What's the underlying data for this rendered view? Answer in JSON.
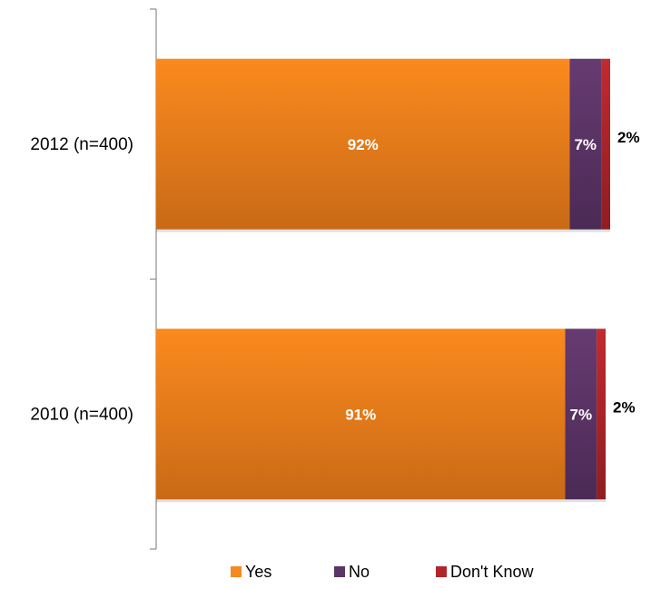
{
  "chart_data": {
    "type": "bar",
    "orientation": "horizontal",
    "stacked": true,
    "categories": [
      "2012 (n=400)",
      "2010 (n=400)"
    ],
    "series": [
      {
        "name": "Yes",
        "color": "#f58a1f",
        "values": [
          92,
          91
        ],
        "labels": [
          "92%",
          "91%"
        ]
      },
      {
        "name": "No",
        "color": "#5b3566",
        "values": [
          7,
          7
        ],
        "labels": [
          "7%",
          "7%"
        ]
      },
      {
        "name": "Don't Know",
        "color": "#b0262a",
        "values": [
          2,
          2
        ],
        "labels": [
          "2%",
          "2%"
        ]
      }
    ],
    "xlim": [
      0,
      101
    ],
    "grid": false,
    "legend": "bottom",
    "label_placement": {
      "Yes": "inside",
      "No": "inside",
      "Don't Know": "outside-right"
    }
  }
}
